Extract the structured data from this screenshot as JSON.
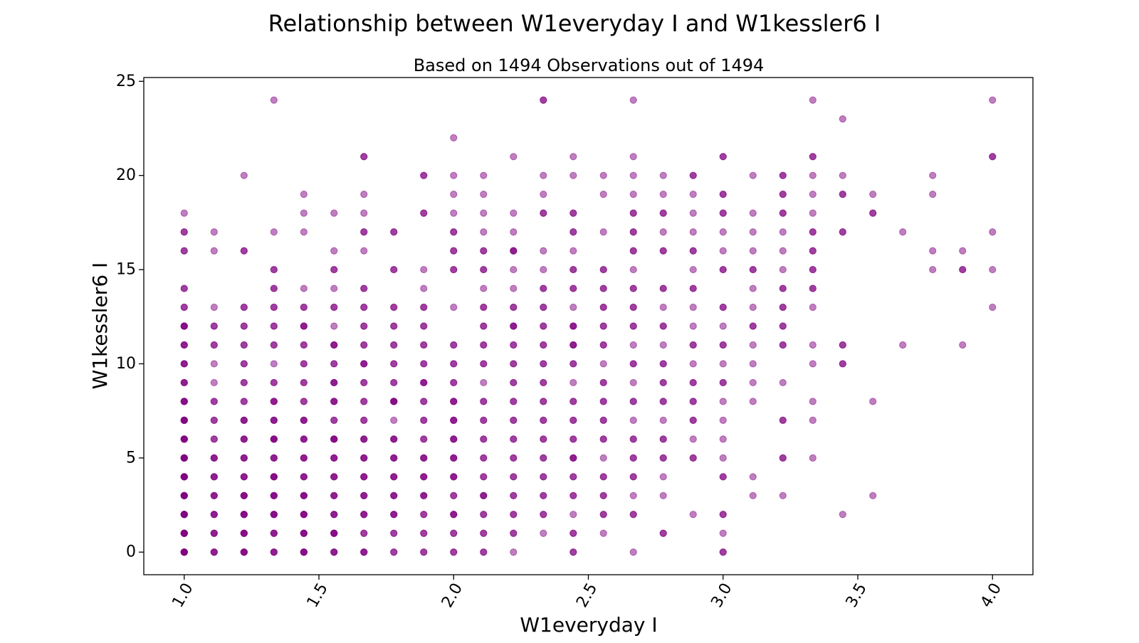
{
  "chart_data": {
    "type": "scatter",
    "title": "Relationship between W1everyday I and W1kessler6 I",
    "subtitle": "Based on 1494 Observations out of 1494",
    "xlabel": "W1everyday I",
    "ylabel": "W1kessler6 I",
    "xlim": [
      0.85,
      4.15
    ],
    "ylim": [
      -1.2,
      25.2
    ],
    "xticks": [
      1.0,
      1.5,
      2.0,
      2.5,
      3.0,
      3.5,
      4.0
    ],
    "xtick_labels": [
      "1.0",
      "1.5",
      "2.0",
      "2.5",
      "3.0",
      "3.5",
      "4.0"
    ],
    "xtick_rotation": 60,
    "yticks": [
      0,
      5,
      10,
      15,
      20,
      25
    ],
    "ytick_labels": [
      "0",
      "5",
      "10",
      "15",
      "20",
      "25"
    ],
    "grid": false,
    "marker_color": "#800080",
    "marker_alpha": 0.5,
    "x_values": [
      1.0,
      1.111,
      1.222,
      1.333,
      1.444,
      1.556,
      1.667,
      1.778,
      1.889,
      2.0,
      2.111,
      2.222,
      2.333,
      2.444,
      2.556,
      2.667,
      2.778,
      2.889,
      3.0,
      3.111,
      3.222,
      3.333,
      3.444,
      3.556,
      3.667,
      3.778,
      3.889,
      4.0
    ],
    "points": [
      {
        "x": 1.0,
        "y": [
          0,
          1,
          2,
          3,
          4,
          5,
          6,
          7,
          8,
          9,
          10,
          11,
          12,
          13,
          14,
          16,
          17,
          18
        ],
        "n": [
          6,
          6,
          6,
          6,
          6,
          6,
          5,
          5,
          4,
          3,
          3,
          3,
          4,
          2,
          2,
          2,
          2,
          1
        ]
      },
      {
        "x": 1.111,
        "y": [
          0,
          1,
          2,
          3,
          4,
          5,
          6,
          7,
          8,
          9,
          10,
          11,
          12,
          13,
          16,
          17
        ],
        "n": [
          3,
          3,
          3,
          3,
          3,
          3,
          2,
          2,
          2,
          1,
          1,
          2,
          2,
          1,
          1,
          1
        ]
      },
      {
        "x": 1.222,
        "y": [
          0,
          1,
          2,
          3,
          4,
          5,
          6,
          7,
          8,
          9,
          10,
          11,
          12,
          13,
          16,
          20
        ],
        "n": [
          4,
          4,
          4,
          4,
          3,
          3,
          3,
          3,
          2,
          2,
          2,
          2,
          2,
          2,
          2,
          1
        ]
      },
      {
        "x": 1.333,
        "y": [
          0,
          1,
          2,
          3,
          4,
          5,
          6,
          7,
          8,
          9,
          10,
          11,
          12,
          13,
          14,
          15,
          17,
          24
        ],
        "n": [
          3,
          3,
          4,
          4,
          4,
          3,
          4,
          3,
          3,
          2,
          1,
          2,
          2,
          2,
          2,
          2,
          1,
          1
        ]
      },
      {
        "x": 1.444,
        "y": [
          0,
          1,
          2,
          3,
          4,
          5,
          6,
          7,
          8,
          9,
          10,
          11,
          12,
          13,
          14,
          17,
          18,
          19
        ],
        "n": [
          4,
          4,
          4,
          4,
          3,
          3,
          3,
          3,
          2,
          2,
          2,
          2,
          3,
          2,
          1,
          1,
          1,
          1
        ]
      },
      {
        "x": 1.556,
        "y": [
          0,
          1,
          2,
          3,
          4,
          5,
          6,
          7,
          8,
          9,
          10,
          11,
          12,
          13,
          14,
          15,
          16,
          18
        ],
        "n": [
          3,
          4,
          3,
          3,
          3,
          3,
          4,
          2,
          3,
          3,
          2,
          3,
          1,
          2,
          1,
          2,
          1,
          1
        ]
      },
      {
        "x": 1.667,
        "y": [
          0,
          1,
          2,
          3,
          4,
          5,
          6,
          7,
          8,
          9,
          10,
          11,
          12,
          13,
          14,
          16,
          17,
          18,
          19,
          21
        ],
        "n": [
          3,
          2,
          3,
          3,
          3,
          3,
          3,
          2,
          2,
          2,
          3,
          2,
          2,
          2,
          2,
          1,
          2,
          1,
          1,
          2
        ]
      },
      {
        "x": 1.778,
        "y": [
          0,
          1,
          2,
          3,
          4,
          5,
          6,
          7,
          8,
          9,
          10,
          11,
          12,
          13,
          15,
          17
        ],
        "n": [
          2,
          2,
          3,
          3,
          3,
          3,
          3,
          1,
          4,
          2,
          2,
          2,
          2,
          2,
          2,
          2
        ]
      },
      {
        "x": 1.889,
        "y": [
          0,
          1,
          2,
          3,
          4,
          5,
          6,
          7,
          8,
          9,
          10,
          11,
          12,
          13,
          14,
          15,
          18,
          20
        ],
        "n": [
          2,
          2,
          2,
          3,
          3,
          3,
          2,
          2,
          2,
          3,
          2,
          2,
          2,
          2,
          1,
          1,
          2,
          2
        ]
      },
      {
        "x": 2.0,
        "y": [
          0,
          1,
          2,
          3,
          4,
          5,
          6,
          7,
          8,
          9,
          10,
          11,
          13,
          15,
          16,
          17,
          18,
          19,
          20,
          22
        ],
        "n": [
          2,
          2,
          3,
          2,
          3,
          3,
          3,
          3,
          3,
          2,
          2,
          2,
          1,
          2,
          2,
          2,
          1,
          1,
          1,
          1
        ]
      },
      {
        "x": 2.111,
        "y": [
          0,
          1,
          2,
          3,
          4,
          5,
          6,
          7,
          8,
          9,
          10,
          11,
          12,
          13,
          14,
          15,
          16,
          17,
          18,
          19,
          20
        ],
        "n": [
          2,
          2,
          2,
          3,
          2,
          2,
          2,
          2,
          2,
          1,
          2,
          2,
          2,
          2,
          1,
          2,
          2,
          1,
          1,
          1,
          1
        ]
      },
      {
        "x": 2.222,
        "y": [
          0,
          1,
          2,
          3,
          4,
          5,
          6,
          7,
          8,
          9,
          10,
          11,
          12,
          13,
          14,
          15,
          16,
          17,
          18,
          21
        ],
        "n": [
          1,
          2,
          2,
          2,
          2,
          2,
          2,
          2,
          2,
          2,
          2,
          2,
          3,
          2,
          1,
          1,
          3,
          1,
          1,
          1
        ]
      },
      {
        "x": 2.333,
        "y": [
          1,
          2,
          3,
          4,
          5,
          6,
          7,
          8,
          9,
          10,
          11,
          12,
          13,
          14,
          15,
          16,
          18,
          19,
          20,
          24
        ],
        "n": [
          1,
          2,
          2,
          2,
          2,
          2,
          2,
          2,
          2,
          2,
          2,
          2,
          2,
          2,
          1,
          1,
          2,
          1,
          1,
          2
        ]
      },
      {
        "x": 2.444,
        "y": [
          0,
          1,
          2,
          3,
          4,
          5,
          6,
          7,
          8,
          9,
          10,
          11,
          12,
          13,
          14,
          15,
          16,
          17,
          18,
          20,
          21
        ],
        "n": [
          2,
          2,
          1,
          2,
          2,
          3,
          2,
          2,
          2,
          1,
          2,
          3,
          3,
          1,
          2,
          2,
          1,
          2,
          2,
          1,
          1
        ]
      },
      {
        "x": 2.556,
        "y": [
          1,
          2,
          3,
          4,
          5,
          6,
          7,
          8,
          9,
          10,
          11,
          12,
          13,
          14,
          15,
          17,
          19,
          20
        ],
        "n": [
          1,
          2,
          2,
          2,
          1,
          2,
          2,
          2,
          2,
          1,
          2,
          2,
          2,
          2,
          2,
          1,
          1,
          1
        ]
      },
      {
        "x": 2.667,
        "y": [
          0,
          2,
          3,
          4,
          5,
          6,
          7,
          8,
          9,
          10,
          11,
          12,
          13,
          14,
          15,
          16,
          17,
          18,
          19,
          20,
          21,
          24
        ],
        "n": [
          1,
          2,
          1,
          2,
          2,
          2,
          1,
          2,
          1,
          2,
          1,
          2,
          2,
          2,
          1,
          2,
          2,
          2,
          1,
          1,
          1,
          1
        ]
      },
      {
        "x": 2.778,
        "y": [
          1,
          3,
          4,
          5,
          6,
          7,
          8,
          9,
          10,
          11,
          12,
          13,
          14,
          16,
          17,
          18,
          19,
          20
        ],
        "n": [
          2,
          1,
          1,
          2,
          2,
          1,
          2,
          2,
          2,
          1,
          2,
          1,
          2,
          2,
          1,
          2,
          1,
          1
        ]
      },
      {
        "x": 2.889,
        "y": [
          2,
          5,
          6,
          7,
          8,
          9,
          10,
          11,
          12,
          13,
          14,
          15,
          16,
          17,
          18,
          19,
          20
        ],
        "n": [
          1,
          2,
          1,
          2,
          2,
          2,
          1,
          2,
          1,
          1,
          2,
          1,
          2,
          1,
          1,
          1,
          2
        ]
      },
      {
        "x": 3.0,
        "y": [
          0,
          1,
          2,
          4,
          5,
          6,
          7,
          8,
          9,
          10,
          11,
          12,
          13,
          15,
          16,
          17,
          18,
          19,
          21
        ],
        "n": [
          2,
          1,
          2,
          2,
          1,
          1,
          1,
          1,
          2,
          1,
          2,
          1,
          2,
          2,
          1,
          1,
          2,
          2,
          2
        ]
      },
      {
        "x": 3.111,
        "y": [
          3,
          4,
          8,
          9,
          10,
          11,
          12,
          13,
          14,
          15,
          16,
          17,
          18,
          20
        ],
        "n": [
          1,
          1,
          1,
          1,
          1,
          1,
          2,
          1,
          1,
          2,
          1,
          1,
          1,
          1
        ]
      },
      {
        "x": 3.222,
        "y": [
          3,
          5,
          7,
          9,
          11,
          12,
          13,
          14,
          15,
          16,
          17,
          18,
          19,
          20
        ],
        "n": [
          1,
          2,
          2,
          1,
          2,
          2,
          2,
          2,
          1,
          1,
          1,
          2,
          2,
          2
        ]
      },
      {
        "x": 3.333,
        "y": [
          5,
          7,
          8,
          10,
          11,
          13,
          14,
          15,
          16,
          17,
          18,
          19,
          20,
          21,
          24
        ],
        "n": [
          1,
          1,
          1,
          1,
          1,
          1,
          2,
          2,
          2,
          2,
          1,
          1,
          1,
          2,
          1
        ]
      },
      {
        "x": 3.444,
        "y": [
          2,
          10,
          11,
          17,
          19,
          20,
          23
        ],
        "n": [
          1,
          2,
          2,
          2,
          2,
          1,
          1
        ]
      },
      {
        "x": 3.556,
        "y": [
          3,
          8,
          18,
          19
        ],
        "n": [
          1,
          1,
          2,
          1
        ]
      },
      {
        "x": 3.667,
        "y": [
          11,
          17
        ],
        "n": [
          1,
          1
        ]
      },
      {
        "x": 3.778,
        "y": [
          15,
          16,
          19,
          20
        ],
        "n": [
          1,
          1,
          1,
          1
        ]
      },
      {
        "x": 3.889,
        "y": [
          11,
          15,
          16
        ],
        "n": [
          1,
          2,
          1
        ]
      },
      {
        "x": 4.0,
        "y": [
          13,
          15,
          17,
          21,
          24
        ],
        "n": [
          1,
          1,
          1,
          2,
          1
        ]
      }
    ]
  }
}
